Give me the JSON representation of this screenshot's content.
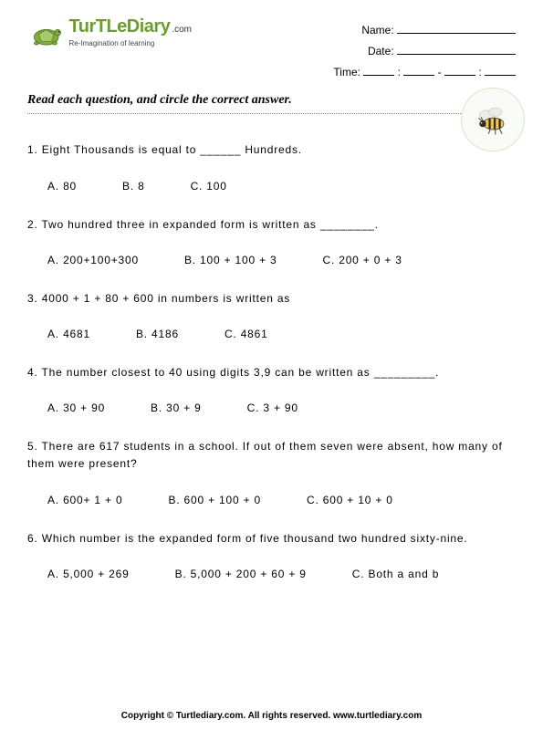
{
  "header": {
    "logo_main": "TurTLe",
    "logo_secondary": "Diary",
    "logo_suffix": ".com",
    "tagline": "Re-Imagination of learning",
    "name_label": "Name:",
    "date_label": "Date:",
    "time_label": "Time:"
  },
  "instructions": "Read each question, and circle the correct answer.",
  "questions": [
    {
      "num": "1.",
      "text": "Eight Thousands is equal to ______ Hundreds.",
      "choices": [
        "A. 80",
        "B. 8",
        "C. 100"
      ]
    },
    {
      "num": "2.",
      "text": "Two hundred three in expanded form is written as ________.",
      "choices": [
        "A. 200+100+300",
        "B. 100 + 100 + 3",
        "C. 200 + 0 + 3"
      ]
    },
    {
      "num": "3.",
      "text": "4000 + 1 + 80 + 600 in numbers is written as",
      "choices": [
        "A. 4681",
        "B. 4186",
        "C. 4861"
      ]
    },
    {
      "num": "4.",
      "text": "The number closest to 40 using digits 3,9 can be written as _________.",
      "choices": [
        "A. 30 + 90",
        "B. 30 + 9",
        "C. 3 + 90"
      ]
    },
    {
      "num": "5.",
      "text": "There are 617 students in a school. If out of them seven were absent, how many of them were present?",
      "choices": [
        "A. 600+ 1 + 0",
        "B. 600 + 100 + 0",
        "C. 600 + 10 + 0"
      ]
    },
    {
      "num": "6.",
      "text": "Which number is the expanded form of five thousand two hundred sixty-nine.",
      "choices": [
        "A. 5,000 + 269",
        "B. 5,000 + 200 + 60 + 9",
        "C. Both a and b"
      ]
    }
  ],
  "footer": "Copyright © Turtlediary.com. All rights reserved. www.turtlediary.com",
  "colors": {
    "logo_green": "#6b9e2f",
    "badge_bg": "#f9fbf6",
    "badge_border": "#d9e6c8",
    "text": "#000000"
  }
}
